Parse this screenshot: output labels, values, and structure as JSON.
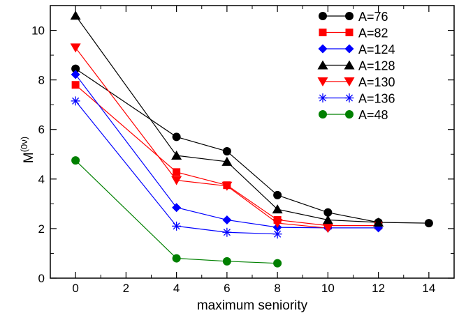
{
  "chart_data": {
    "type": "line",
    "xlabel": "maximum seniority",
    "ylabel": "M",
    "ylabel_superscript": "(0ν)",
    "xlim": [
      -1,
      15
    ],
    "ylim": [
      0,
      11
    ],
    "xticks": [
      0,
      2,
      4,
      6,
      8,
      10,
      12,
      14
    ],
    "yticks": [
      0,
      2,
      4,
      6,
      8,
      10
    ],
    "legend_position": "top-right",
    "grid": false,
    "series": [
      {
        "name": "A=76",
        "color": "#000000",
        "marker": "circle",
        "x": [
          0,
          4,
          6,
          8,
          10,
          12,
          14
        ],
        "y": [
          8.45,
          5.7,
          5.12,
          3.35,
          2.65,
          2.25,
          2.22
        ]
      },
      {
        "name": "A=82",
        "color": "#ff0000",
        "marker": "square",
        "x": [
          0,
          4,
          6,
          8,
          10,
          12
        ],
        "y": [
          7.8,
          4.28,
          3.75,
          2.35,
          2.12,
          2.12
        ]
      },
      {
        "name": "A=124",
        "color": "#0000ff",
        "marker": "diamond",
        "x": [
          0,
          4,
          6,
          8,
          10,
          12
        ],
        "y": [
          8.22,
          2.85,
          2.35,
          2.05,
          2.03,
          2.03
        ]
      },
      {
        "name": "A=128",
        "color": "#000000",
        "marker": "triangle-up",
        "x": [
          0,
          4,
          6,
          8,
          10,
          12
        ],
        "y": [
          10.6,
          4.95,
          4.7,
          2.78,
          2.35,
          2.25
        ]
      },
      {
        "name": "A=130",
        "color": "#ff0000",
        "marker": "triangle-down",
        "x": [
          0,
          4,
          6,
          8,
          10
        ],
        "y": [
          9.3,
          3.95,
          3.72,
          2.22,
          2.02
        ]
      },
      {
        "name": "A=136",
        "color": "#0000ff",
        "marker": "asterisk",
        "x": [
          0,
          4,
          6,
          8
        ],
        "y": [
          7.15,
          2.1,
          1.85,
          1.78
        ]
      },
      {
        "name": "A=48",
        "color": "#008000",
        "marker": "circle",
        "x": [
          0,
          4,
          6,
          8
        ],
        "y": [
          4.75,
          0.8,
          0.68,
          0.6
        ]
      }
    ]
  }
}
